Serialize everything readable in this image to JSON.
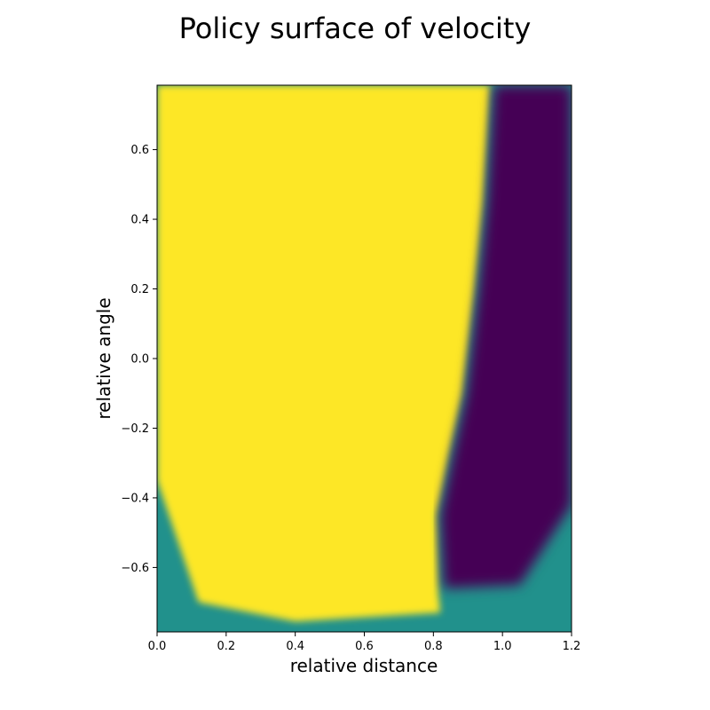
{
  "chart_data": {
    "type": "heatmap",
    "title": "Policy surface of velocity",
    "xlabel": "relative distance",
    "ylabel": "relative angle",
    "xlim": [
      0.0,
      1.2
    ],
    "ylim": [
      -0.785,
      0.785
    ],
    "xticks": [
      0.0,
      0.2,
      0.4,
      0.6,
      0.8,
      1.0,
      1.2
    ],
    "xtick_labels": [
      "0.0",
      "0.2",
      "0.4",
      "0.6",
      "0.8",
      "1.0",
      "1.2"
    ],
    "yticks": [
      -0.6,
      -0.4,
      -0.2,
      0.0,
      0.2,
      0.4,
      0.6
    ],
    "ytick_labels": [
      "−0.6",
      "−0.4",
      "−0.2",
      "0.0",
      "0.2",
      "0.4",
      "0.6"
    ],
    "colormap": "viridis",
    "grid": false,
    "regions": [
      {
        "value": "high",
        "color": "#fde725",
        "polygon": [
          [
            0.0,
            0.785
          ],
          [
            0.965,
            0.785
          ],
          [
            0.945,
            0.45
          ],
          [
            0.92,
            0.2
          ],
          [
            0.885,
            -0.1
          ],
          [
            0.845,
            -0.28
          ],
          [
            0.81,
            -0.45
          ],
          [
            0.815,
            -0.68
          ],
          [
            0.82,
            -0.73
          ],
          [
            0.4,
            -0.755
          ],
          [
            0.12,
            -0.7
          ],
          [
            0.0,
            -0.35
          ]
        ]
      },
      {
        "value": "low",
        "color": "#440154",
        "polygon": [
          [
            0.975,
            0.785
          ],
          [
            1.2,
            0.785
          ],
          [
            1.2,
            -0.42
          ],
          [
            1.05,
            -0.65
          ],
          [
            0.83,
            -0.66
          ],
          [
            0.82,
            -0.45
          ],
          [
            0.855,
            -0.28
          ],
          [
            0.895,
            -0.1
          ],
          [
            0.93,
            0.2
          ],
          [
            0.955,
            0.45
          ]
        ]
      },
      {
        "value": "mid",
        "color": "#21918c",
        "note_from_image": "bottom band and lower-left / lower-right corners"
      }
    ]
  }
}
